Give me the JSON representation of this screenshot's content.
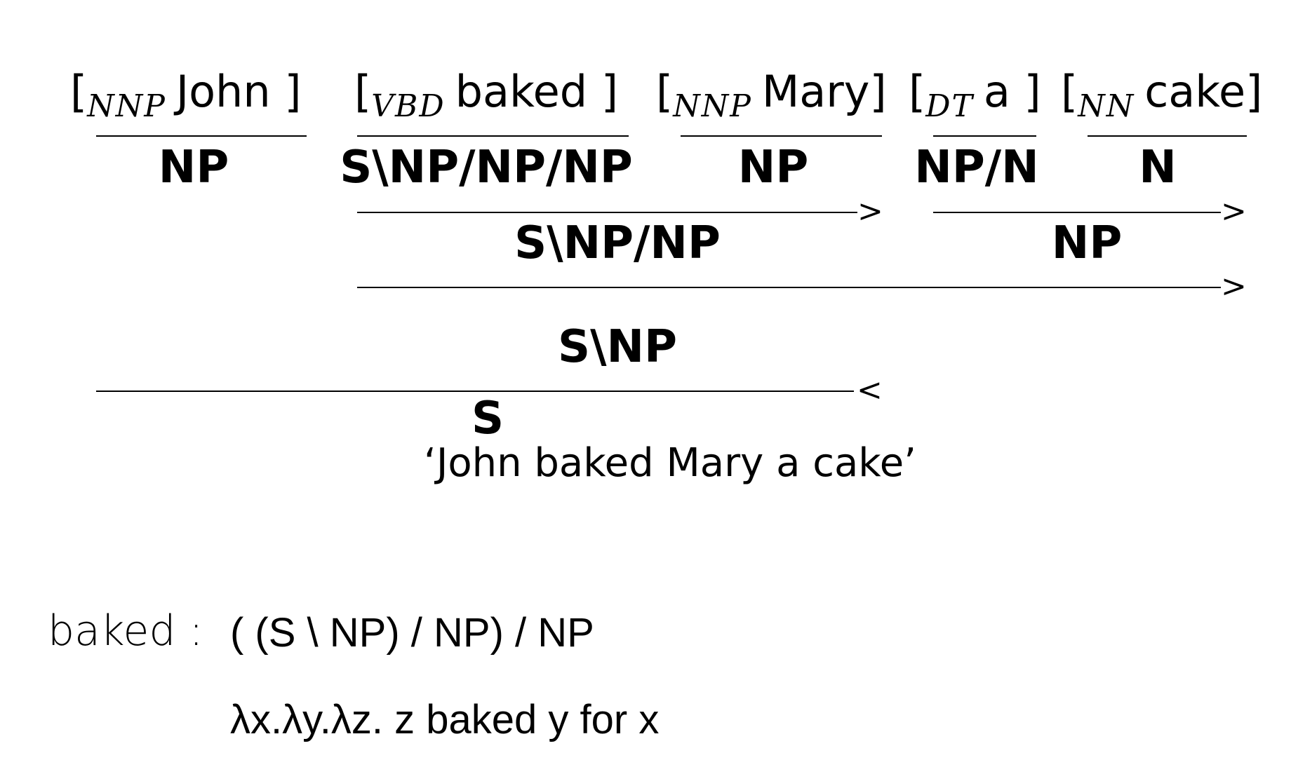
{
  "derivation": {
    "tokens": [
      {
        "tag": "NNP",
        "word": "John",
        "close": "]"
      },
      {
        "tag": "VBD",
        "word": "baked",
        "close": "]"
      },
      {
        "tag": "NNP",
        "word": "Mary",
        "close": "]"
      },
      {
        "tag": "DT",
        "word": "a",
        "close": "]"
      },
      {
        "tag": "NN",
        "word": "cake",
        "close": "]"
      }
    ],
    "lexical_categories": [
      "NP",
      "S\\NP/NP/NP",
      "NP",
      "NP/N",
      "N"
    ],
    "steps": [
      {
        "result": "S\\NP/NP",
        "operator": ">"
      },
      {
        "result": "NP",
        "operator": ">"
      },
      {
        "result": "S\\NP",
        "operator": ">"
      },
      {
        "result": "S",
        "operator": "<"
      }
    ],
    "sentence": "‘John baked Mary a cake’"
  },
  "lexical_entry": {
    "word": "baked :",
    "category": "( (S \\ NP) / NP) / NP",
    "semantics": "λx.λy.λz. z baked y for x"
  }
}
